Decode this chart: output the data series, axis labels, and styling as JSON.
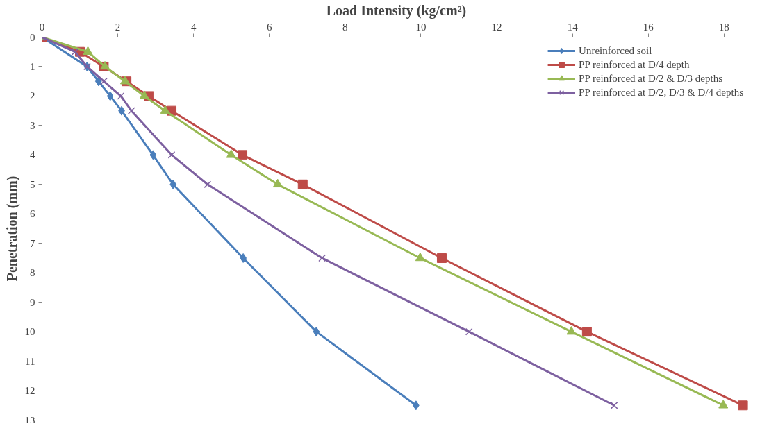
{
  "chart_data": {
    "type": "line",
    "xlabel": "Load Intensity (kg/cm²)",
    "ylabel": "Penetration (mm)",
    "xlim": [
      0,
      18.7
    ],
    "xticks": [
      0,
      2,
      4,
      6,
      8,
      10,
      12,
      14,
      16,
      18
    ],
    "ylim": [
      13,
      0
    ],
    "yticks": [
      0,
      1,
      2,
      3,
      4,
      5,
      6,
      7,
      8,
      9,
      10,
      11,
      12,
      13
    ],
    "grid": false,
    "legend": "top right",
    "line_style": "solid",
    "series": [
      {
        "name": "Unreinforced soil",
        "color": "#4a7ebb",
        "marker": "diamond",
        "x": [
          0,
          1.19,
          1.49,
          1.8,
          2.1,
          2.93,
          3.46,
          5.31,
          7.24,
          9.87
        ],
        "values": [
          0,
          1,
          1.5,
          2,
          2.5,
          4,
          5,
          7.5,
          10,
          12.5
        ]
      },
      {
        "name": "PP reinforced at D/4 depth",
        "color": "#be4b48",
        "marker": "square",
        "x": [
          0,
          1.0,
          1.63,
          2.23,
          2.82,
          3.42,
          5.29,
          6.88,
          10.55,
          14.38,
          18.5
        ],
        "values": [
          0,
          0.5,
          1,
          1.5,
          2,
          2.5,
          4,
          5,
          7.5,
          10,
          12.5
        ]
      },
      {
        "name": "PP reinforced at D/2 & D/3 depths",
        "color": "#98b954",
        "marker": "triangle",
        "x": [
          0,
          1.21,
          1.66,
          2.19,
          2.7,
          3.25,
          4.99,
          6.22,
          9.98,
          13.97,
          17.98
        ],
        "values": [
          0,
          0.5,
          1,
          1.5,
          2,
          2.5,
          4,
          5,
          7.5,
          10,
          12.5
        ]
      },
      {
        "name": "PP reinforced at D/2, D/3 & D/4 depths",
        "color": "#7d60a0",
        "marker": "cross",
        "x": [
          0,
          0.87,
          1.19,
          1.63,
          2.08,
          2.36,
          3.42,
          4.37,
          7.39,
          11.27,
          15.1
        ],
        "values": [
          0,
          0.5,
          1,
          1.5,
          2,
          2.5,
          4,
          5,
          7.5,
          10,
          12.5
        ]
      }
    ]
  }
}
